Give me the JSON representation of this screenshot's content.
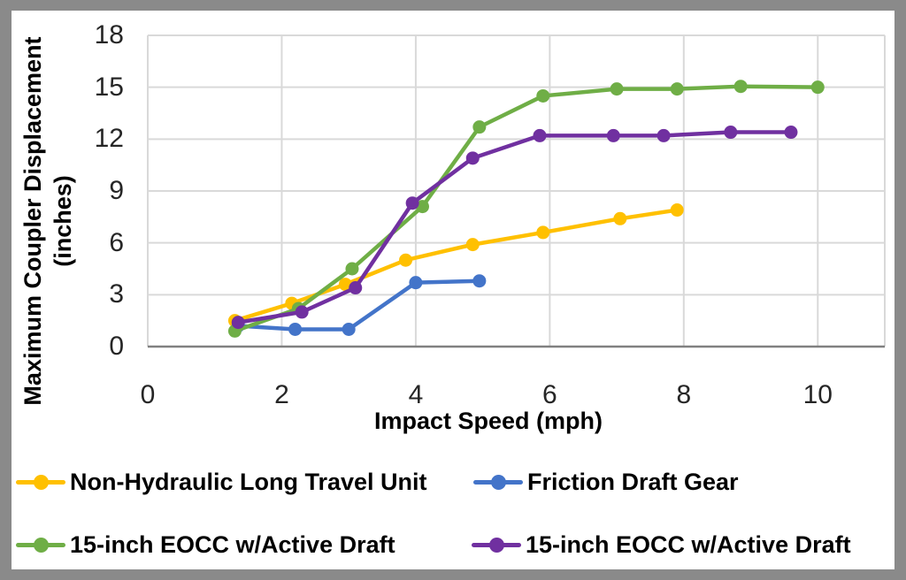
{
  "chart_data": {
    "type": "line",
    "title": "",
    "xlabel": "Impact Speed (mph)",
    "ylabel": "Maximum Coupler Displacement\n(inches)",
    "xlim": [
      0,
      11
    ],
    "ylim": [
      0,
      18
    ],
    "xticks": [
      0,
      2,
      4,
      6,
      8,
      10
    ],
    "yticks": [
      0,
      3,
      6,
      9,
      12,
      15,
      18
    ],
    "grid": true,
    "grid_color": "#D9D9D9",
    "axis_line_color": "#808080",
    "legend_position": "bottom",
    "series": [
      {
        "name": "Non-Hydraulic Long Travel Unit",
        "color": "#FFC000",
        "points": [
          [
            1.3,
            1.5
          ],
          [
            2.15,
            2.5
          ],
          [
            2.95,
            3.6
          ],
          [
            3.85,
            5.0
          ],
          [
            4.85,
            5.9
          ],
          [
            5.9,
            6.6
          ],
          [
            7.05,
            7.4
          ],
          [
            7.9,
            7.9
          ]
        ]
      },
      {
        "name": "Friction Draft Gear",
        "color": "#4374C9",
        "points": [
          [
            1.35,
            1.2
          ],
          [
            2.2,
            1.0
          ],
          [
            3.0,
            1.0
          ],
          [
            4.0,
            3.7
          ],
          [
            4.95,
            3.8
          ]
        ]
      },
      {
        "name": "15-inch EOCC w/Active Draft",
        "color": "#6FAE46",
        "points": [
          [
            1.3,
            0.9
          ],
          [
            2.25,
            2.2
          ],
          [
            3.05,
            4.5
          ],
          [
            4.1,
            8.1
          ],
          [
            4.95,
            12.7
          ],
          [
            5.9,
            14.5
          ],
          [
            7.0,
            14.9
          ],
          [
            7.9,
            14.9
          ],
          [
            8.85,
            15.05
          ],
          [
            10.0,
            15.0
          ]
        ]
      },
      {
        "name": "15-inch EOCC w/Active Draft",
        "color": "#7030A0",
        "points": [
          [
            1.35,
            1.4
          ],
          [
            2.3,
            2.0
          ],
          [
            3.1,
            3.4
          ],
          [
            3.95,
            8.3
          ],
          [
            4.85,
            10.9
          ],
          [
            5.85,
            12.2
          ],
          [
            6.95,
            12.2
          ],
          [
            7.7,
            12.2
          ],
          [
            8.7,
            12.4
          ],
          [
            9.6,
            12.4
          ]
        ]
      }
    ]
  },
  "frame": {
    "border_color": "#8A8A8A",
    "background": "#FFFFFF"
  }
}
